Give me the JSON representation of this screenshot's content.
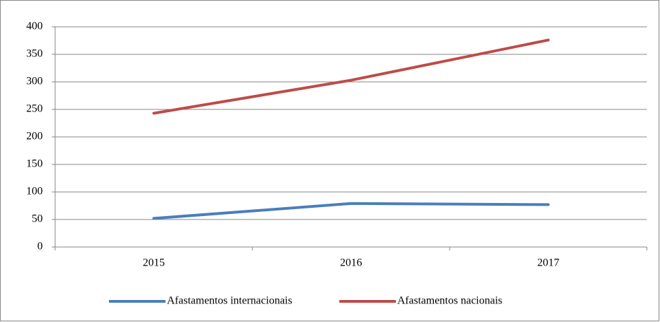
{
  "chart_data": {
    "type": "line",
    "categories": [
      "2015",
      "2016",
      "2017"
    ],
    "series": [
      {
        "name": "Afastamentos internacionais",
        "color": "#4a7ebb",
        "values": [
          52,
          79,
          77
        ]
      },
      {
        "name": "Afastamentos nacionais",
        "color": "#be4b48",
        "values": [
          243,
          303,
          376
        ]
      }
    ],
    "ylim": [
      0,
      400
    ],
    "yticks": [
      0,
      50,
      100,
      150,
      200,
      250,
      300,
      350,
      400
    ],
    "grid": true,
    "legend": "bottom"
  }
}
